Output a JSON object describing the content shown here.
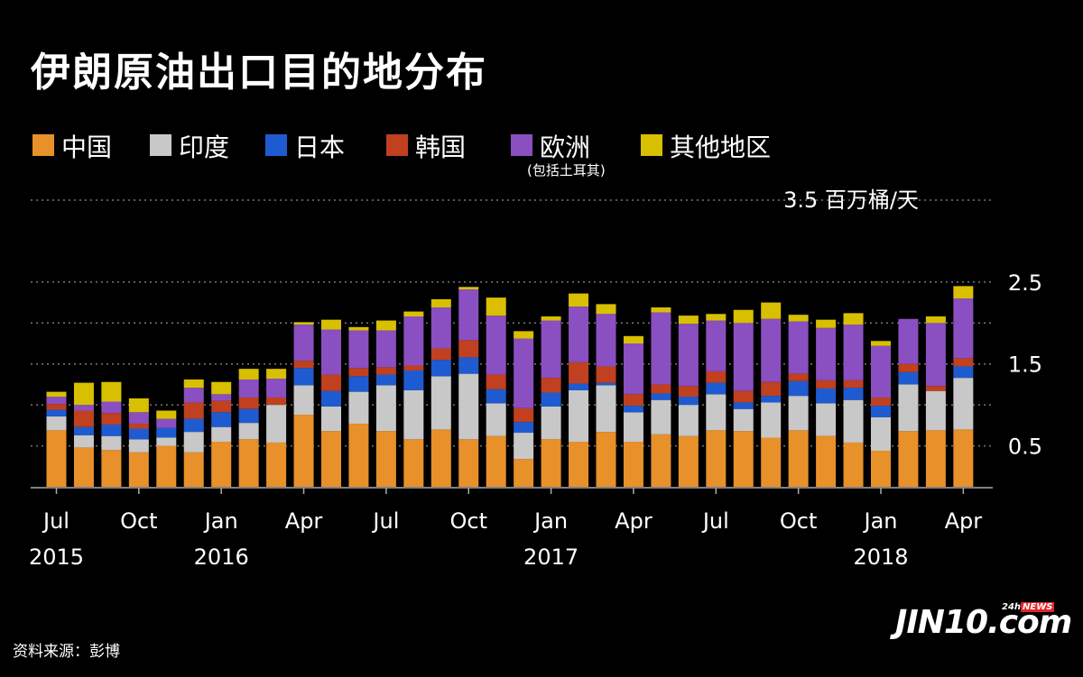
{
  "title": "伊朗原油出口目的地分布",
  "source": "资料来源：彭博",
  "logo": {
    "text": "JIN10.com",
    "badge_prefix": "24h",
    "badge_news": "NEWS"
  },
  "legend_note": "(包括土耳其)",
  "chart_data": {
    "type": "bar",
    "stacked": true,
    "unit_label": "3.5 百万桶/天",
    "ylim": [
      0,
      3.5
    ],
    "yticks": [
      {
        "value": 3.5,
        "label": ""
      },
      {
        "value": 2.5,
        "label": "2.5"
      },
      {
        "value": 2.0,
        "label": ""
      },
      {
        "value": 1.5,
        "label": "1.5"
      },
      {
        "value": 1.0,
        "label": ""
      },
      {
        "value": 0.5,
        "label": "0.5"
      }
    ],
    "grid": true,
    "legend_position": "top-left",
    "categories": [
      "2015-07",
      "2015-08",
      "2015-09",
      "2015-10",
      "2015-11",
      "2015-12",
      "2016-01",
      "2016-02",
      "2016-03",
      "2016-04",
      "2016-05",
      "2016-06",
      "2016-07",
      "2016-08",
      "2016-09",
      "2016-10",
      "2016-11",
      "2016-12",
      "2017-01",
      "2017-02",
      "2017-03",
      "2017-04",
      "2017-05",
      "2017-06",
      "2017-07",
      "2017-08",
      "2017-09",
      "2017-10",
      "2017-11",
      "2017-12",
      "2018-01",
      "2018-02",
      "2018-03",
      "2018-04"
    ],
    "x_ticks": [
      {
        "index": 0,
        "month": "Jul",
        "year": "2015"
      },
      {
        "index": 3,
        "month": "Oct",
        "year": ""
      },
      {
        "index": 6,
        "month": "Jan",
        "year": "2016"
      },
      {
        "index": 9,
        "month": "Apr",
        "year": ""
      },
      {
        "index": 12,
        "month": "Jul",
        "year": ""
      },
      {
        "index": 15,
        "month": "Oct",
        "year": ""
      },
      {
        "index": 18,
        "month": "Jan",
        "year": "2017"
      },
      {
        "index": 21,
        "month": "Apr",
        "year": ""
      },
      {
        "index": 24,
        "month": "Jul",
        "year": ""
      },
      {
        "index": 27,
        "month": "Oct",
        "year": ""
      },
      {
        "index": 30,
        "month": "Jan",
        "year": "2018"
      },
      {
        "index": 33,
        "month": "Apr",
        "year": ""
      }
    ],
    "series": [
      {
        "name": "中国",
        "color": "#e8902a",
        "values": [
          0.69,
          0.48,
          0.45,
          0.42,
          0.5,
          0.42,
          0.55,
          0.58,
          0.54,
          0.88,
          0.68,
          0.77,
          0.68,
          0.58,
          0.7,
          0.58,
          0.62,
          0.34,
          0.58,
          0.55,
          0.67,
          0.55,
          0.64,
          0.62,
          0.69,
          0.68,
          0.6,
          0.69,
          0.62,
          0.54,
          0.44,
          0.68,
          0.69,
          0.7
        ]
      },
      {
        "name": "印度",
        "color": "#c8c8c8",
        "values": [
          0.17,
          0.15,
          0.17,
          0.16,
          0.1,
          0.25,
          0.18,
          0.2,
          0.46,
          0.36,
          0.3,
          0.39,
          0.56,
          0.6,
          0.65,
          0.8,
          0.4,
          0.32,
          0.4,
          0.63,
          0.57,
          0.36,
          0.42,
          0.38,
          0.44,
          0.27,
          0.43,
          0.42,
          0.4,
          0.52,
          0.41,
          0.57,
          0.48,
          0.63
        ]
      },
      {
        "name": "日本",
        "color": "#1f5bd0",
        "values": [
          0.08,
          0.1,
          0.14,
          0.13,
          0.12,
          0.16,
          0.18,
          0.17,
          0.0,
          0.21,
          0.19,
          0.19,
          0.13,
          0.24,
          0.2,
          0.2,
          0.17,
          0.13,
          0.17,
          0.08,
          0.03,
          0.08,
          0.08,
          0.1,
          0.14,
          0.08,
          0.08,
          0.18,
          0.18,
          0.15,
          0.14,
          0.15,
          0.0,
          0.14
        ]
      },
      {
        "name": "韩国",
        "color": "#c0401f",
        "values": [
          0.07,
          0.2,
          0.14,
          0.06,
          0.0,
          0.2,
          0.14,
          0.14,
          0.09,
          0.09,
          0.2,
          0.1,
          0.09,
          0.06,
          0.14,
          0.21,
          0.18,
          0.17,
          0.18,
          0.26,
          0.2,
          0.14,
          0.11,
          0.13,
          0.14,
          0.14,
          0.17,
          0.09,
          0.1,
          0.09,
          0.1,
          0.1,
          0.06,
          0.1
        ]
      },
      {
        "name": "欧洲",
        "color": "#8a4fc0",
        "values": [
          0.09,
          0.07,
          0.14,
          0.14,
          0.11,
          0.18,
          0.08,
          0.22,
          0.23,
          0.44,
          0.55,
          0.46,
          0.45,
          0.6,
          0.5,
          0.62,
          0.72,
          0.85,
          0.7,
          0.68,
          0.64,
          0.62,
          0.88,
          0.76,
          0.62,
          0.83,
          0.77,
          0.64,
          0.64,
          0.68,
          0.63,
          0.55,
          0.77,
          0.73
        ]
      },
      {
        "name": "其他地区",
        "color": "#d8c000",
        "values": [
          0.06,
          0.27,
          0.24,
          0.17,
          0.1,
          0.1,
          0.15,
          0.13,
          0.12,
          0.03,
          0.12,
          0.04,
          0.12,
          0.06,
          0.1,
          0.03,
          0.22,
          0.09,
          0.05,
          0.16,
          0.12,
          0.09,
          0.06,
          0.1,
          0.08,
          0.16,
          0.2,
          0.08,
          0.1,
          0.14,
          0.06,
          0.0,
          0.08,
          0.15
        ]
      }
    ]
  }
}
